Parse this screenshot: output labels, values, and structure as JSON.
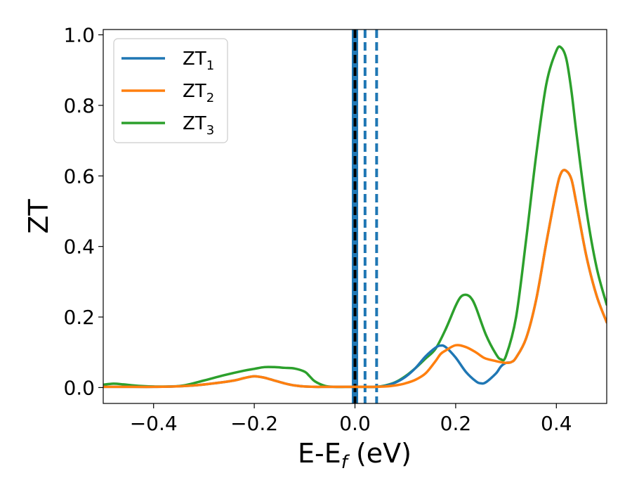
{
  "chart_data": {
    "type": "line",
    "xlabel": "E-E",
    "xlabel_sub": "f",
    "xlabel_unit": " (eV)",
    "ylabel": "ZT",
    "xlim": [
      -0.5,
      0.5
    ],
    "ylim": [
      -0.045,
      1.015
    ],
    "xticks": [
      -0.4,
      -0.2,
      0.0,
      0.2,
      0.4
    ],
    "xtick_labels": [
      "−0.4",
      "−0.2",
      "0.0",
      "0.2",
      "0.4"
    ],
    "yticks": [
      0.0,
      0.2,
      0.4,
      0.6,
      0.8,
      1.0
    ],
    "ytick_labels": [
      "0.0",
      "0.2",
      "0.4",
      "0.6",
      "0.8",
      "1.0"
    ],
    "grid": false,
    "legend_position": "top-left",
    "vlines": [
      {
        "x": 0.0,
        "color": "#1f77b4",
        "style": "solid",
        "width": 9
      },
      {
        "x": 0.0,
        "color": "#000000",
        "style": "dashed",
        "width": 4
      },
      {
        "x": 0.02,
        "color": "#1f77b4",
        "style": "dashed",
        "width": 4
      },
      {
        "x": 0.043,
        "color": "#1f77b4",
        "style": "dashed",
        "width": 4
      }
    ],
    "series": [
      {
        "name": "ZT",
        "sub": "1",
        "color": "#1f77b4",
        "x": [
          -0.5,
          -0.47,
          -0.44,
          -0.4,
          -0.36,
          -0.32,
          -0.28,
          -0.24,
          -0.22,
          -0.2,
          -0.18,
          -0.16,
          -0.14,
          -0.12,
          -0.1,
          -0.08,
          -0.06,
          -0.04,
          -0.02,
          0.0,
          0.02,
          0.04,
          0.06,
          0.08,
          0.1,
          0.12,
          0.14,
          0.16,
          0.17,
          0.18,
          0.2,
          0.22,
          0.24,
          0.25,
          0.26,
          0.28,
          0.29,
          0.3,
          0.31,
          0.32,
          0.34,
          0.36,
          0.38,
          0.4,
          0.41,
          0.42,
          0.43,
          0.44,
          0.46,
          0.48,
          0.5
        ],
        "y": [
          0.002,
          0.002,
          0.002,
          0.002,
          0.003,
          0.006,
          0.012,
          0.02,
          0.027,
          0.032,
          0.028,
          0.02,
          0.012,
          0.006,
          0.003,
          0.002,
          0.002,
          0.002,
          0.002,
          0.002,
          0.002,
          0.002,
          0.005,
          0.014,
          0.03,
          0.055,
          0.088,
          0.113,
          0.119,
          0.115,
          0.085,
          0.045,
          0.018,
          0.012,
          0.015,
          0.04,
          0.06,
          0.07,
          0.072,
          0.085,
          0.14,
          0.25,
          0.41,
          0.56,
          0.61,
          0.614,
          0.59,
          0.52,
          0.37,
          0.26,
          0.185
        ]
      },
      {
        "name": "ZT",
        "sub": "2",
        "color": "#ff7f0e",
        "x": [
          -0.5,
          -0.47,
          -0.44,
          -0.4,
          -0.36,
          -0.32,
          -0.28,
          -0.24,
          -0.22,
          -0.2,
          -0.18,
          -0.16,
          -0.14,
          -0.12,
          -0.1,
          -0.08,
          -0.06,
          -0.04,
          -0.02,
          0.0,
          0.02,
          0.04,
          0.06,
          0.08,
          0.1,
          0.12,
          0.14,
          0.16,
          0.17,
          0.18,
          0.2,
          0.22,
          0.24,
          0.25,
          0.26,
          0.28,
          0.29,
          0.3,
          0.31,
          0.32,
          0.34,
          0.36,
          0.38,
          0.4,
          0.41,
          0.42,
          0.43,
          0.44,
          0.46,
          0.48,
          0.5
        ],
        "y": [
          0.002,
          0.002,
          0.002,
          0.002,
          0.003,
          0.006,
          0.012,
          0.02,
          0.027,
          0.032,
          0.028,
          0.02,
          0.012,
          0.006,
          0.003,
          0.002,
          0.002,
          0.002,
          0.002,
          0.002,
          0.002,
          0.002,
          0.003,
          0.006,
          0.012,
          0.022,
          0.04,
          0.075,
          0.095,
          0.105,
          0.12,
          0.115,
          0.1,
          0.09,
          0.082,
          0.075,
          0.072,
          0.07,
          0.072,
          0.085,
          0.14,
          0.25,
          0.41,
          0.56,
          0.61,
          0.614,
          0.59,
          0.52,
          0.37,
          0.26,
          0.185
        ]
      },
      {
        "name": "ZT",
        "sub": "3",
        "color": "#2ca02c",
        "x": [
          -0.5,
          -0.48,
          -0.46,
          -0.44,
          -0.42,
          -0.4,
          -0.37,
          -0.34,
          -0.3,
          -0.26,
          -0.22,
          -0.2,
          -0.18,
          -0.16,
          -0.14,
          -0.12,
          -0.1,
          -0.09,
          -0.08,
          -0.06,
          -0.04,
          -0.02,
          0.0,
          0.02,
          0.04,
          0.06,
          0.08,
          0.1,
          0.12,
          0.14,
          0.16,
          0.18,
          0.2,
          0.21,
          0.22,
          0.23,
          0.24,
          0.26,
          0.28,
          0.29,
          0.3,
          0.32,
          0.34,
          0.36,
          0.38,
          0.4,
          0.41,
          0.42,
          0.43,
          0.44,
          0.46,
          0.48,
          0.5
        ],
        "y": [
          0.008,
          0.011,
          0.009,
          0.006,
          0.004,
          0.003,
          0.003,
          0.006,
          0.02,
          0.035,
          0.048,
          0.053,
          0.058,
          0.058,
          0.056,
          0.054,
          0.045,
          0.032,
          0.018,
          0.005,
          0.002,
          0.002,
          0.002,
          0.002,
          0.002,
          0.006,
          0.015,
          0.032,
          0.055,
          0.082,
          0.11,
          0.165,
          0.232,
          0.257,
          0.263,
          0.255,
          0.228,
          0.15,
          0.095,
          0.08,
          0.09,
          0.2,
          0.42,
          0.66,
          0.86,
          0.955,
          0.963,
          0.93,
          0.84,
          0.72,
          0.5,
          0.34,
          0.235
        ]
      }
    ]
  }
}
